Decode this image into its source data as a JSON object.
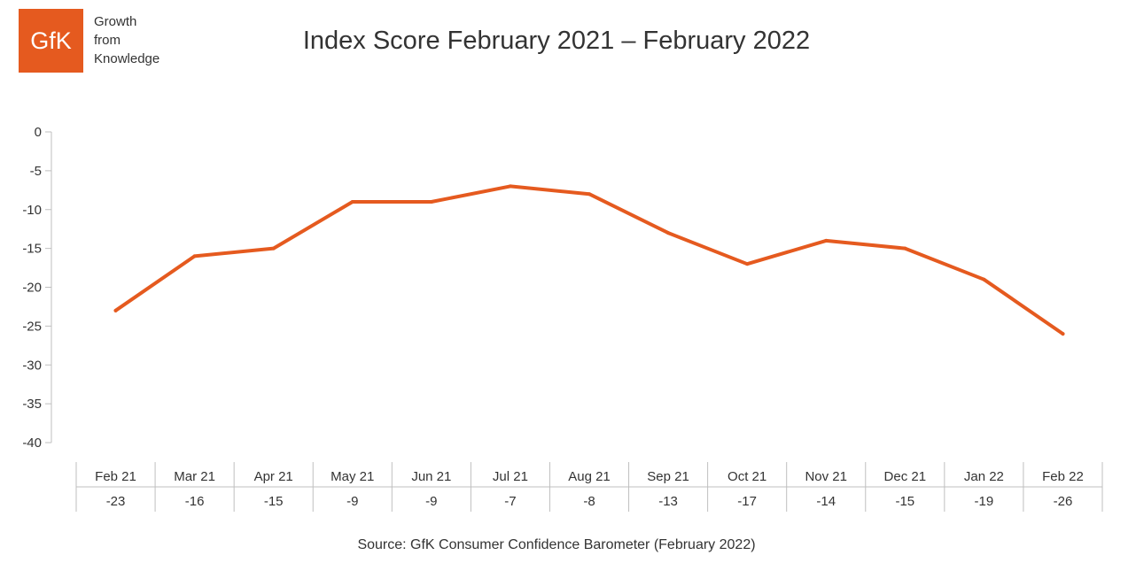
{
  "logo": {
    "mark": "GfK",
    "tagline": [
      "Growth",
      "from",
      "Knowledge"
    ]
  },
  "title": "Index Score February 2021 – February 2022",
  "source": "Source: GfK Consumer Confidence Barometer (February 2022)",
  "colors": {
    "line": "#e55a1f",
    "brand": "#e55a1f",
    "axis": "#bfbfbf",
    "text": "#333333"
  },
  "chart_data": {
    "type": "line",
    "title": "Index Score February 2021 – February 2022",
    "categories": [
      "Feb 21",
      "Mar 21",
      "Apr 21",
      "May 21",
      "Jun 21",
      "Jul 21",
      "Aug 21",
      "Sep 21",
      "Oct 21",
      "Nov 21",
      "Dec 21",
      "Jan 22",
      "Feb 22"
    ],
    "values": [
      -23,
      -16,
      -15,
      -9,
      -9,
      -7,
      -8,
      -13,
      -17,
      -14,
      -15,
      -19,
      -26
    ],
    "value_labels": [
      "-23",
      "-16",
      "-15",
      "-9",
      "-9",
      "-7",
      "-8",
      "-13",
      "-17",
      "-14",
      "-15",
      "-19",
      "-26"
    ],
    "ylim": [
      -40,
      0
    ],
    "yticks": [
      0,
      -5,
      -10,
      -15,
      -20,
      -25,
      -30,
      -35,
      -40
    ],
    "xlabel": "",
    "ylabel": "",
    "grid": false,
    "legend": "none",
    "data_table": true
  }
}
